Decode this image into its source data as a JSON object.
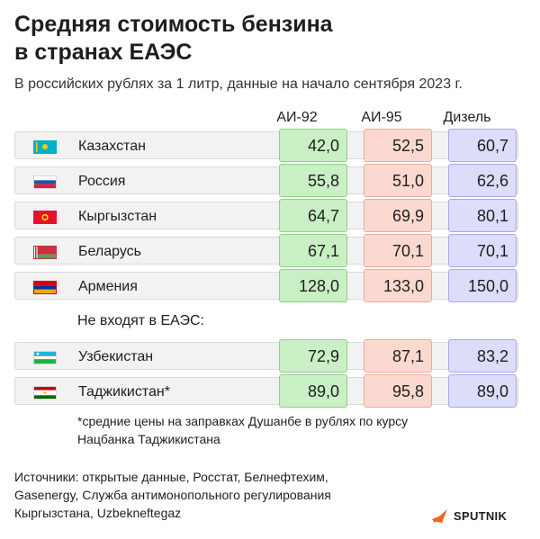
{
  "title_line1": "Средняя стоимость бензина",
  "title_line2": "в странах ЕАЭС",
  "subtitle": "В российских рублях за 1 литр, данные на начало сентября 2023 г.",
  "columns": [
    "АИ-92",
    "АИ-95",
    "Дизель"
  ],
  "section_label": "Не входят в ЕАЭС:",
  "footnote_line1": "*средние цены на заправках Душанбе в рублях по курсу",
  "footnote_line2": "Нацбанка Таджикистана",
  "sources_line1": "Источники: открытые данные, Росстат, Белнефтехим,",
  "sources_line2": "Gasenergy, Служба антимонопольного регулирования",
  "sources_line3": "Кыргызстана, Uzbekneftegaz",
  "logo_text": "SPUTNIK",
  "colors": {
    "ai92": "#c9f0c5",
    "ai95": "#fcd9d0",
    "diesel": "#dcdcfb",
    "row_bg": "#f2f2f2"
  },
  "rows": [
    {
      "country": "Казахстан",
      "flag": "kazakhstan-flag",
      "ai92": "42,0",
      "ai95": "52,5",
      "diesel": "60,7"
    },
    {
      "country": "Россия",
      "flag": "russia-flag",
      "ai92": "55,8",
      "ai95": "51,0",
      "diesel": "62,6"
    },
    {
      "country": "Кыргызстан",
      "flag": "kyrgyzstan-flag",
      "ai92": "64,7",
      "ai95": "69,9",
      "diesel": "80,1"
    },
    {
      "country": "Беларусь",
      "flag": "belarus-flag",
      "ai92": "67,1",
      "ai95": "70,1",
      "diesel": "70,1"
    },
    {
      "country": "Армения",
      "flag": "armenia-flag",
      "ai92": "128,0",
      "ai95": "133,0",
      "diesel": "150,0"
    },
    {
      "country": "Узбекистан",
      "flag": "uzbekistan-flag",
      "ai92": "72,9",
      "ai95": "87,1",
      "diesel": "83,2"
    },
    {
      "country": "Таджикистан*",
      "flag": "tajikistan-flag",
      "ai92": "89,0",
      "ai95": "95,8",
      "diesel": "89,0"
    }
  ],
  "chart_data": {
    "type": "table",
    "title": "Средняя стоимость бензина в странах ЕАЭС",
    "subtitle": "В российских рублях за 1 литр, данные на начало сентября 2023 г.",
    "categories": [
      "Казахстан",
      "Россия",
      "Кыргызстан",
      "Беларусь",
      "Армения",
      "Узбекистан",
      "Таджикистан*"
    ],
    "series": [
      {
        "name": "АИ-92",
        "values": [
          42.0,
          55.8,
          64.7,
          67.1,
          128.0,
          72.9,
          89.0
        ]
      },
      {
        "name": "АИ-95",
        "values": [
          52.5,
          51.0,
          69.9,
          70.1,
          133.0,
          87.1,
          95.8
        ]
      },
      {
        "name": "Дизель",
        "values": [
          60.7,
          62.6,
          80.1,
          70.1,
          150.0,
          83.2,
          89.0
        ]
      }
    ]
  }
}
